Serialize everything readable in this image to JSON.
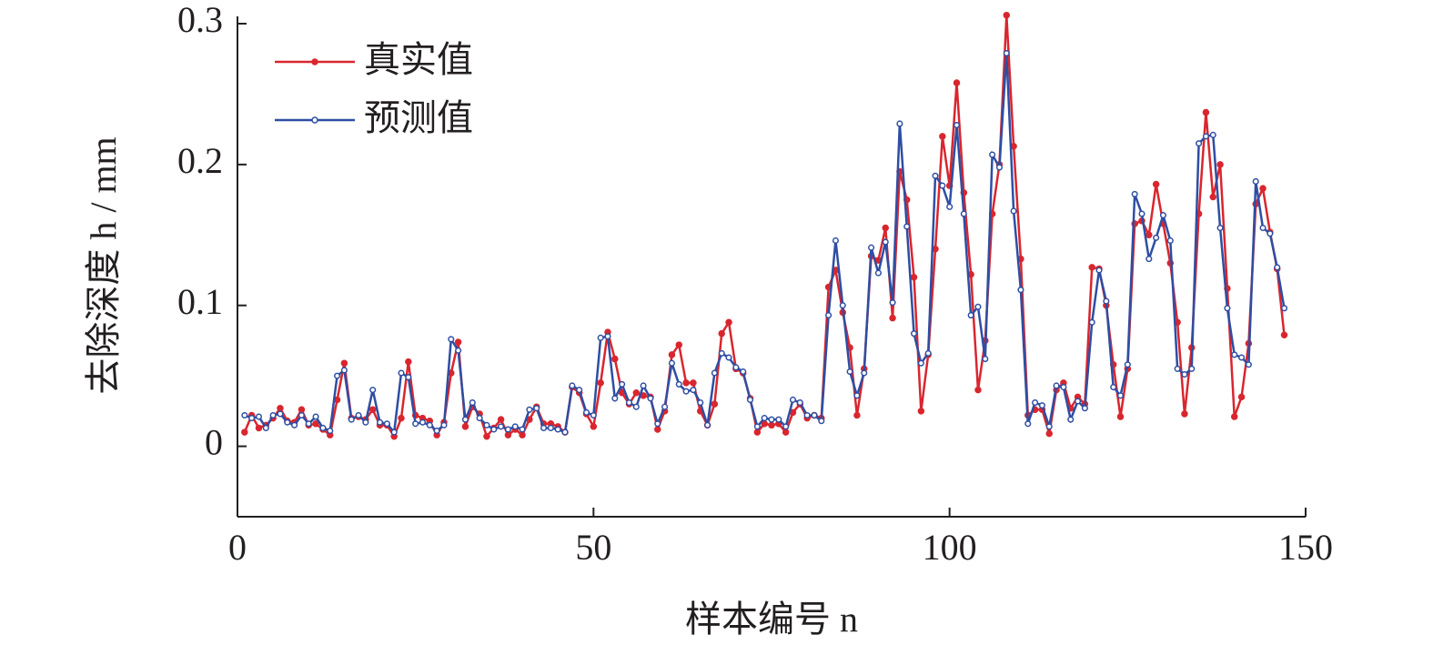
{
  "chart_data": {
    "type": "line",
    "x_label": "样本编号 n",
    "y_label": "去除深度 h / mm",
    "xlim": [
      0,
      150
    ],
    "xticks": [
      0,
      50,
      100,
      150
    ],
    "ylim": [
      -0.05,
      0.3
    ],
    "yticks": [
      0,
      0.1,
      0.2,
      0.3
    ],
    "legend": "upper left",
    "x": [
      1,
      2,
      3,
      4,
      5,
      6,
      7,
      8,
      9,
      10,
      11,
      12,
      13,
      14,
      15,
      16,
      17,
      18,
      19,
      20,
      21,
      22,
      23,
      24,
      25,
      26,
      27,
      28,
      29,
      30,
      31,
      32,
      33,
      34,
      35,
      36,
      37,
      38,
      39,
      40,
      41,
      42,
      43,
      44,
      45,
      46,
      47,
      48,
      49,
      50,
      51,
      52,
      53,
      54,
      55,
      56,
      57,
      58,
      59,
      60,
      61,
      62,
      63,
      64,
      65,
      66,
      67,
      68,
      69,
      70,
      71,
      72,
      73,
      74,
      75,
      76,
      77,
      78,
      79,
      80,
      81,
      82,
      83,
      84,
      85,
      86,
      87,
      88,
      89,
      90,
      91,
      92,
      93,
      94,
      95,
      96,
      97,
      98,
      99,
      100,
      101,
      102,
      103,
      104,
      105,
      106,
      107,
      108,
      109,
      110,
      111,
      112,
      113,
      114,
      115,
      116,
      117,
      118,
      119,
      120,
      121,
      122,
      123,
      124,
      125,
      126,
      127,
      128,
      129,
      130,
      131,
      132,
      133,
      134,
      135,
      136,
      137,
      138,
      139,
      140,
      141,
      142,
      143,
      144,
      145,
      146,
      147
    ],
    "series": [
      {
        "name": "真实值",
        "color": "#d9262e",
        "marker": "filled",
        "values": [
          0.01,
          0.022,
          0.013,
          0.015,
          0.02,
          0.027,
          0.018,
          0.017,
          0.026,
          0.015,
          0.016,
          0.012,
          0.008,
          0.033,
          0.059,
          0.02,
          0.021,
          0.019,
          0.026,
          0.015,
          0.015,
          0.007,
          0.02,
          0.06,
          0.022,
          0.02,
          0.018,
          0.008,
          0.017,
          0.052,
          0.074,
          0.014,
          0.028,
          0.023,
          0.007,
          0.013,
          0.019,
          0.008,
          0.012,
          0.008,
          0.019,
          0.028,
          0.016,
          0.016,
          0.014,
          0.01,
          0.042,
          0.038,
          0.023,
          0.014,
          0.045,
          0.081,
          0.062,
          0.038,
          0.03,
          0.038,
          0.036,
          0.035,
          0.012,
          0.025,
          0.065,
          0.072,
          0.045,
          0.045,
          0.025,
          0.015,
          0.03,
          0.08,
          0.088,
          0.055,
          0.052,
          0.034,
          0.01,
          0.016,
          0.015,
          0.016,
          0.01,
          0.024,
          0.03,
          0.02,
          0.022,
          0.02,
          0.113,
          0.125,
          0.095,
          0.07,
          0.022,
          0.055,
          0.135,
          0.132,
          0.155,
          0.091,
          0.195,
          0.175,
          0.12,
          0.025,
          0.065,
          0.14,
          0.22,
          0.185,
          0.258,
          0.18,
          0.122,
          0.04,
          0.075,
          0.165,
          0.2,
          0.306,
          0.213,
          0.133,
          0.022,
          0.026,
          0.026,
          0.009,
          0.04,
          0.045,
          0.027,
          0.035,
          0.03,
          0.127,
          0.126,
          0.1,
          0.058,
          0.021,
          0.055,
          0.158,
          0.16,
          0.15,
          0.186,
          0.158,
          0.13,
          0.088,
          0.023,
          0.07,
          0.165,
          0.237,
          0.177,
          0.2,
          0.112,
          0.021,
          0.035,
          0.073,
          0.172,
          0.183,
          0.152,
          0.126,
          0.079
        ]
      },
      {
        "name": "预测值",
        "color": "#2e4ea3",
        "marker": "hollow",
        "values": [
          0.022,
          0.02,
          0.021,
          0.013,
          0.022,
          0.023,
          0.017,
          0.015,
          0.022,
          0.016,
          0.021,
          0.013,
          0.011,
          0.05,
          0.054,
          0.019,
          0.022,
          0.017,
          0.04,
          0.017,
          0.016,
          0.01,
          0.052,
          0.049,
          0.016,
          0.017,
          0.015,
          0.011,
          0.015,
          0.076,
          0.068,
          0.019,
          0.031,
          0.02,
          0.015,
          0.012,
          0.014,
          0.012,
          0.014,
          0.012,
          0.026,
          0.027,
          0.013,
          0.013,
          0.012,
          0.01,
          0.043,
          0.04,
          0.024,
          0.022,
          0.077,
          0.078,
          0.034,
          0.044,
          0.031,
          0.028,
          0.043,
          0.034,
          0.016,
          0.028,
          0.059,
          0.044,
          0.039,
          0.04,
          0.031,
          0.015,
          0.052,
          0.066,
          0.063,
          0.056,
          0.053,
          0.033,
          0.014,
          0.02,
          0.019,
          0.019,
          0.014,
          0.033,
          0.031,
          0.022,
          0.022,
          0.018,
          0.093,
          0.146,
          0.1,
          0.053,
          0.036,
          0.052,
          0.141,
          0.123,
          0.145,
          0.102,
          0.229,
          0.156,
          0.08,
          0.059,
          0.066,
          0.192,
          0.185,
          0.17,
          0.228,
          0.165,
          0.093,
          0.099,
          0.062,
          0.207,
          0.198,
          0.279,
          0.167,
          0.111,
          0.016,
          0.031,
          0.029,
          0.014,
          0.043,
          0.042,
          0.019,
          0.032,
          0.027,
          0.088,
          0.125,
          0.103,
          0.042,
          0.036,
          0.058,
          0.179,
          0.165,
          0.133,
          0.148,
          0.164,
          0.146,
          0.055,
          0.051,
          0.055,
          0.215,
          0.22,
          0.221,
          0.155,
          0.098,
          0.065,
          0.063,
          0.058,
          0.188,
          0.155,
          0.151,
          0.127,
          0.098
        ]
      }
    ]
  }
}
